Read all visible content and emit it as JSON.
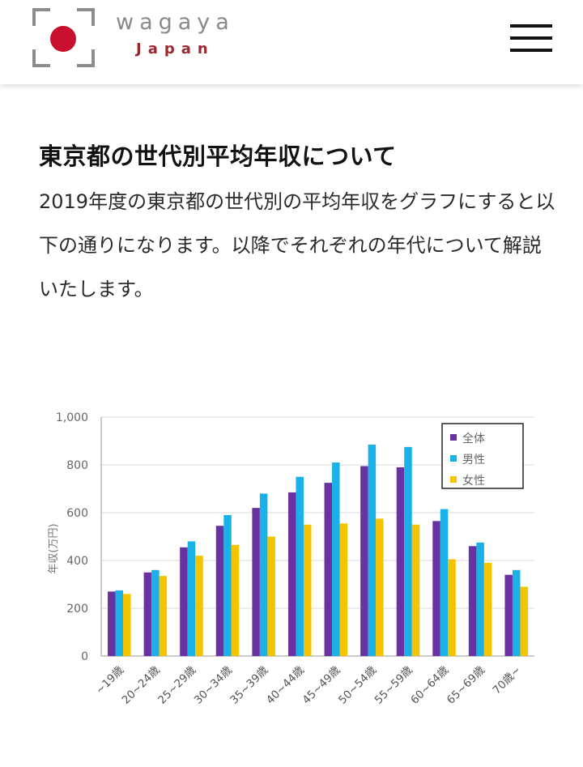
{
  "header": {
    "brand_name": "wagaya",
    "brand_sub": "Japan",
    "logo_color": "#c8102e",
    "logo_frame_color": "#8c8c8c",
    "menu_icon": "hamburger-menu-icon"
  },
  "article": {
    "title": "東京都の世代別平均年収について",
    "intro": "2019年度の東京都の世代別の平均年収をグラフにすると以下の通りになります。以降でそれぞれの年代について解説いたします。"
  },
  "chart_data": {
    "type": "bar",
    "title": "",
    "xlabel": "",
    "ylabel": "年収(万円)",
    "ylim": [
      0,
      1000
    ],
    "yticks": [
      "0",
      "200",
      "400",
      "600",
      "800",
      "1,000"
    ],
    "grid": true,
    "legend_position": "top-right",
    "categories": [
      "~19歳",
      "20~24歳",
      "25~29歳",
      "30~34歳",
      "35~39歳",
      "40~44歳",
      "45~49歳",
      "50~54歳",
      "55~59歳",
      "60~64歳",
      "65~69歳",
      "70歳~"
    ],
    "series": [
      {
        "name": "全体",
        "color": "#6a32a0",
        "values": [
          270,
          350,
          455,
          545,
          620,
          685,
          725,
          795,
          790,
          565,
          460,
          340
        ]
      },
      {
        "name": "男性",
        "color": "#1ab0e8",
        "values": [
          275,
          360,
          480,
          590,
          680,
          750,
          810,
          885,
          875,
          615,
          475,
          360
        ]
      },
      {
        "name": "女性",
        "color": "#f5c400",
        "values": [
          260,
          335,
          420,
          465,
          500,
          550,
          555,
          575,
          550,
          405,
          390,
          290
        ]
      }
    ]
  }
}
